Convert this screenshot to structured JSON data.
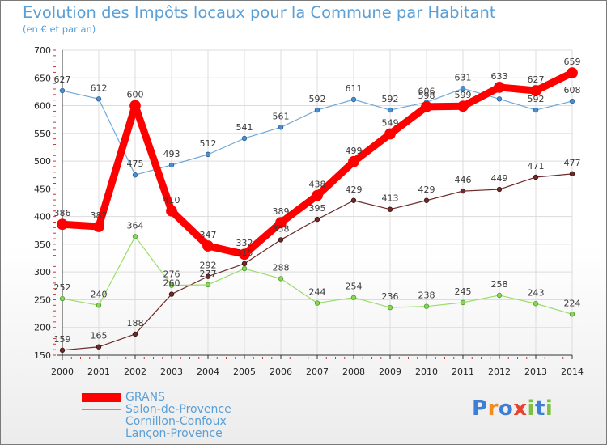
{
  "header": {
    "title": "Evolution des Impôts locaux pour la Commune par Habitant",
    "subtitle": "(en € et par an)"
  },
  "logo": {
    "text": "Proxiti",
    "letters": [
      {
        "char": "P",
        "color": "#3d7fd6"
      },
      {
        "char": "r",
        "color": "#f28c1e"
      },
      {
        "char": "o",
        "color": "#3d7fd6"
      },
      {
        "char": "x",
        "color": "#e8432e"
      },
      {
        "char": "i",
        "color": "#7cc242"
      },
      {
        "char": "t",
        "color": "#3d7fd6"
      },
      {
        "char": "i",
        "color": "#7cc242"
      }
    ]
  },
  "chart_data": {
    "type": "line",
    "title": "Evolution des Impôts locaux pour la Commune par Habitant",
    "subtitle": "(en € et par an)",
    "xlabel": "",
    "ylabel": "",
    "x": [
      "2000",
      "2001",
      "2002",
      "2003",
      "2004",
      "2005",
      "2006",
      "2007",
      "2008",
      "2009",
      "2010",
      "2011",
      "2012",
      "2013",
      "2014"
    ],
    "ylim": [
      150,
      700
    ],
    "yticks": [
      "150",
      "200",
      "250",
      "300",
      "350",
      "400",
      "450",
      "500",
      "550",
      "600",
      "650",
      "700"
    ],
    "grid": true,
    "legend_position": "bottom-left",
    "series": [
      {
        "name": "GRANS",
        "color": "#ff0000",
        "values": [
          386,
          382,
          600,
          410,
          347,
          332,
          389,
          438,
          499,
          549,
          598,
          599,
          633,
          627,
          659
        ]
      },
      {
        "name": "Salon-de-Provence",
        "color": "#6fa8d8",
        "values": [
          627,
          612,
          475,
          493,
          512,
          541,
          561,
          592,
          611,
          592,
          606,
          631,
          612,
          592,
          608
        ]
      },
      {
        "name": "Cornillon-Confoux",
        "color": "#99dd66",
        "values": [
          252,
          240,
          364,
          276,
          277,
          306,
          288,
          244,
          254,
          236,
          238,
          245,
          258,
          243,
          224
        ]
      },
      {
        "name": "Lançon-Provence",
        "color": "#6e2a2a",
        "values": [
          159,
          165,
          188,
          260,
          292,
          315,
          358,
          395,
          429,
          413,
          429,
          446,
          449,
          471,
          477
        ]
      }
    ],
    "data_labels": [
      [
        "386",
        "382",
        "600",
        "410",
        "347",
        "332",
        "389",
        "438",
        "499",
        "549",
        "598",
        "599",
        "633",
        "627",
        "659"
      ],
      [
        "627",
        "612",
        "475",
        "493",
        "512",
        "541",
        "561",
        "592",
        "611",
        "592",
        "606",
        "631",
        "",
        "592",
        "608"
      ],
      [
        "252",
        "240",
        "364",
        "276",
        "277",
        "",
        "288",
        "244",
        "254",
        "236",
        "238",
        "245",
        "258",
        "243",
        "224"
      ],
      [
        "159",
        "165",
        "188",
        "260",
        "292",
        "315",
        "358",
        "395",
        "429",
        "413",
        "429",
        "446",
        "449",
        "471",
        "477"
      ]
    ]
  }
}
